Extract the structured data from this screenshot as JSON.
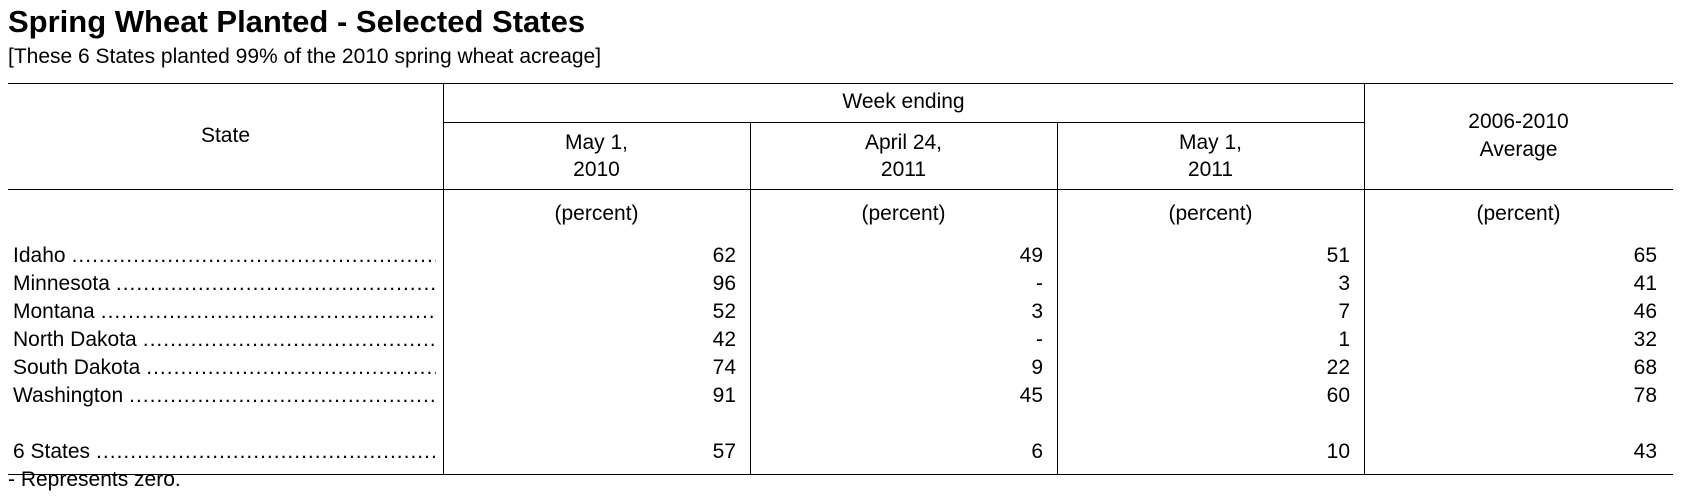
{
  "title": "Spring Wheat Planted - Selected States",
  "subtitle": "[These 6 States planted 99% of the 2010 spring wheat acreage]",
  "table": {
    "state_header": "State",
    "group_header": "Week ending",
    "columns": [
      {
        "line1": "May 1,",
        "line2": "2010",
        "unit": "(percent)"
      },
      {
        "line1": "April 24,",
        "line2": "2011",
        "unit": "(percent)"
      },
      {
        "line1": "May 1,",
        "line2": "2011",
        "unit": "(percent)"
      },
      {
        "line1": "2006-2010",
        "line2": "Average",
        "unit": "(percent)"
      }
    ],
    "rows": [
      {
        "state": "Idaho",
        "values": [
          "62",
          "49",
          "51",
          "65"
        ]
      },
      {
        "state": "Minnesota",
        "values": [
          "96",
          "-",
          "3",
          "41"
        ]
      },
      {
        "state": "Montana",
        "values": [
          "52",
          "3",
          "7",
          "46"
        ]
      },
      {
        "state": "North Dakota",
        "values": [
          "42",
          "-",
          "1",
          "32"
        ]
      },
      {
        "state": "South Dakota",
        "values": [
          "74",
          "9",
          "22",
          "68"
        ]
      },
      {
        "state": "Washington",
        "values": [
          "91",
          "45",
          "60",
          "78"
        ]
      }
    ],
    "total": {
      "state": "6 States",
      "values": [
        "57",
        "6",
        "10",
        "43"
      ]
    }
  },
  "footnote": "- Represents zero."
}
